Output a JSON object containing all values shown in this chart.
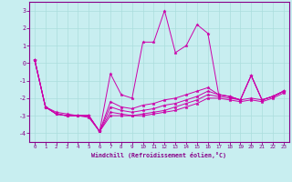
{
  "xlabel": "Windchill (Refroidissement éolien,°C)",
  "bg_color": "#c8eef0",
  "grid_color": "#aadddd",
  "line_color": "#cc00aa",
  "spine_color": "#880088",
  "tick_color": "#880088",
  "ylim": [
    -4.5,
    3.5
  ],
  "xlim": [
    -0.5,
    23.5
  ],
  "yticks": [
    -4,
    -3,
    -2,
    -1,
    0,
    1,
    2,
    3
  ],
  "xticks": [
    0,
    1,
    2,
    3,
    4,
    5,
    6,
    7,
    8,
    9,
    10,
    11,
    12,
    13,
    14,
    15,
    16,
    17,
    18,
    19,
    20,
    21,
    22,
    23
  ],
  "series": [
    [
      0.2,
      -2.5,
      -2.8,
      -2.9,
      -3.0,
      -3.1,
      -3.9,
      -0.6,
      -1.8,
      -2.0,
      1.2,
      1.2,
      3.0,
      0.6,
      1.0,
      2.2,
      1.7,
      -1.8,
      -1.9,
      -2.1,
      -0.7,
      -2.1,
      -1.9,
      -1.6
    ],
    [
      0.2,
      -2.5,
      -2.9,
      -3.0,
      -3.0,
      -3.0,
      -3.9,
      -2.2,
      -2.5,
      -2.6,
      -2.4,
      -2.3,
      -2.1,
      -2.0,
      -1.8,
      -1.6,
      -1.4,
      -1.8,
      -1.9,
      -2.1,
      -0.7,
      -2.1,
      -1.9,
      -1.6
    ],
    [
      0.2,
      -2.5,
      -2.9,
      -3.0,
      -3.0,
      -3.0,
      -3.9,
      -2.5,
      -2.7,
      -2.8,
      -2.7,
      -2.6,
      -2.4,
      -2.3,
      -2.1,
      -1.9,
      -1.6,
      -1.8,
      -1.9,
      -2.1,
      -0.7,
      -2.1,
      -1.9,
      -1.6
    ],
    [
      0.2,
      -2.5,
      -2.9,
      -3.0,
      -3.0,
      -3.0,
      -3.9,
      -2.8,
      -2.9,
      -3.0,
      -2.9,
      -2.8,
      -2.7,
      -2.5,
      -2.3,
      -2.1,
      -1.8,
      -1.9,
      -2.0,
      -2.1,
      -2.0,
      -2.1,
      -1.9,
      -1.6
    ],
    [
      0.2,
      -2.5,
      -2.9,
      -3.0,
      -3.0,
      -3.0,
      -3.9,
      -3.0,
      -3.0,
      -3.0,
      -3.0,
      -2.9,
      -2.8,
      -2.7,
      -2.5,
      -2.3,
      -2.0,
      -2.0,
      -2.1,
      -2.2,
      -2.1,
      -2.2,
      -2.0,
      -1.7
    ]
  ]
}
